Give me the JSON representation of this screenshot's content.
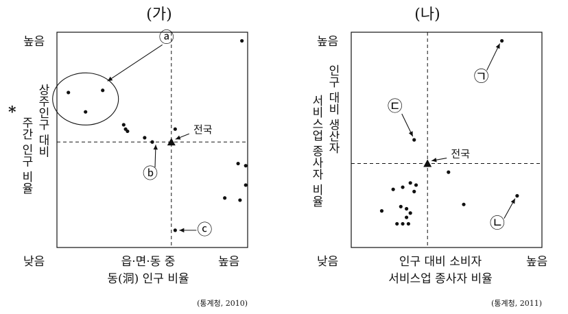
{
  "chart_data": [
    {
      "type": "scatter",
      "title": "(가)",
      "y_high": "높음",
      "corner_low": "낮음",
      "x_high": "높음",
      "xlabel_line1": "읍·면·동 중",
      "xlabel_line2": "동(洞) 인구 비율",
      "ylabel_star": "*",
      "ylabel_col1": "주간 인구 비율",
      "ylabel_col2": "상주인구 대비",
      "source": "(통계청, 2010)",
      "xlim": [
        0,
        100
      ],
      "ylim": [
        0,
        100
      ],
      "reference": {
        "label": "전국",
        "x": 60,
        "y": 49
      },
      "points": [
        {
          "x": 6,
          "y": 72
        },
        {
          "x": 15,
          "y": 63
        },
        {
          "x": 24,
          "y": 73
        },
        {
          "x": 35,
          "y": 57
        },
        {
          "x": 36,
          "y": 55
        },
        {
          "x": 37,
          "y": 54
        },
        {
          "x": 46,
          "y": 51
        },
        {
          "x": 50,
          "y": 49
        },
        {
          "x": 62,
          "y": 55
        },
        {
          "x": 97,
          "y": 96
        },
        {
          "x": 95,
          "y": 39
        },
        {
          "x": 99,
          "y": 38
        },
        {
          "x": 99,
          "y": 29
        },
        {
          "x": 88,
          "y": 23
        },
        {
          "x": 96,
          "y": 22
        },
        {
          "x": 62,
          "y": 8
        }
      ],
      "annotations": [
        {
          "label": "ⓐ",
          "target": "cluster",
          "x": 15,
          "y": 69
        },
        {
          "label": "ⓑ",
          "target": "point",
          "x": 50,
          "y": 49
        },
        {
          "label": "ⓒ",
          "target": "point",
          "x": 62,
          "y": 8
        }
      ]
    },
    {
      "type": "scatter",
      "title": "(나)",
      "y_high": "높음",
      "corner_low": "낮음",
      "x_high": "높음",
      "xlabel_line1": "인구 대비 소비자",
      "xlabel_line2": "서비스업 종사자 비율",
      "ylabel_col1": "서비스업 종사자 비율",
      "ylabel_col2": "인구 대비 생산자",
      "source": "(통계청, 2011)",
      "xlim": [
        0,
        100
      ],
      "ylim": [
        0,
        100
      ],
      "reference": {
        "label": "전국",
        "x": 40,
        "y": 39
      },
      "points": [
        {
          "x": 79,
          "y": 96
        },
        {
          "x": 33,
          "y": 50
        },
        {
          "x": 51,
          "y": 35
        },
        {
          "x": 87,
          "y": 24
        },
        {
          "x": 59,
          "y": 20
        },
        {
          "x": 31,
          "y": 30
        },
        {
          "x": 34,
          "y": 29
        },
        {
          "x": 22,
          "y": 27
        },
        {
          "x": 27,
          "y": 28
        },
        {
          "x": 33,
          "y": 26
        },
        {
          "x": 26,
          "y": 19
        },
        {
          "x": 29,
          "y": 18
        },
        {
          "x": 31,
          "y": 16
        },
        {
          "x": 16,
          "y": 17
        },
        {
          "x": 29,
          "y": 14
        },
        {
          "x": 24,
          "y": 11
        },
        {
          "x": 27,
          "y": 11
        },
        {
          "x": 30,
          "y": 11
        }
      ],
      "annotations": [
        {
          "label": "㉠",
          "target": "point",
          "x": 79,
          "y": 96
        },
        {
          "label": "㉢",
          "target": "point",
          "x": 33,
          "y": 50
        },
        {
          "label": "㉡",
          "target": "point",
          "x": 87,
          "y": 24
        }
      ]
    }
  ]
}
